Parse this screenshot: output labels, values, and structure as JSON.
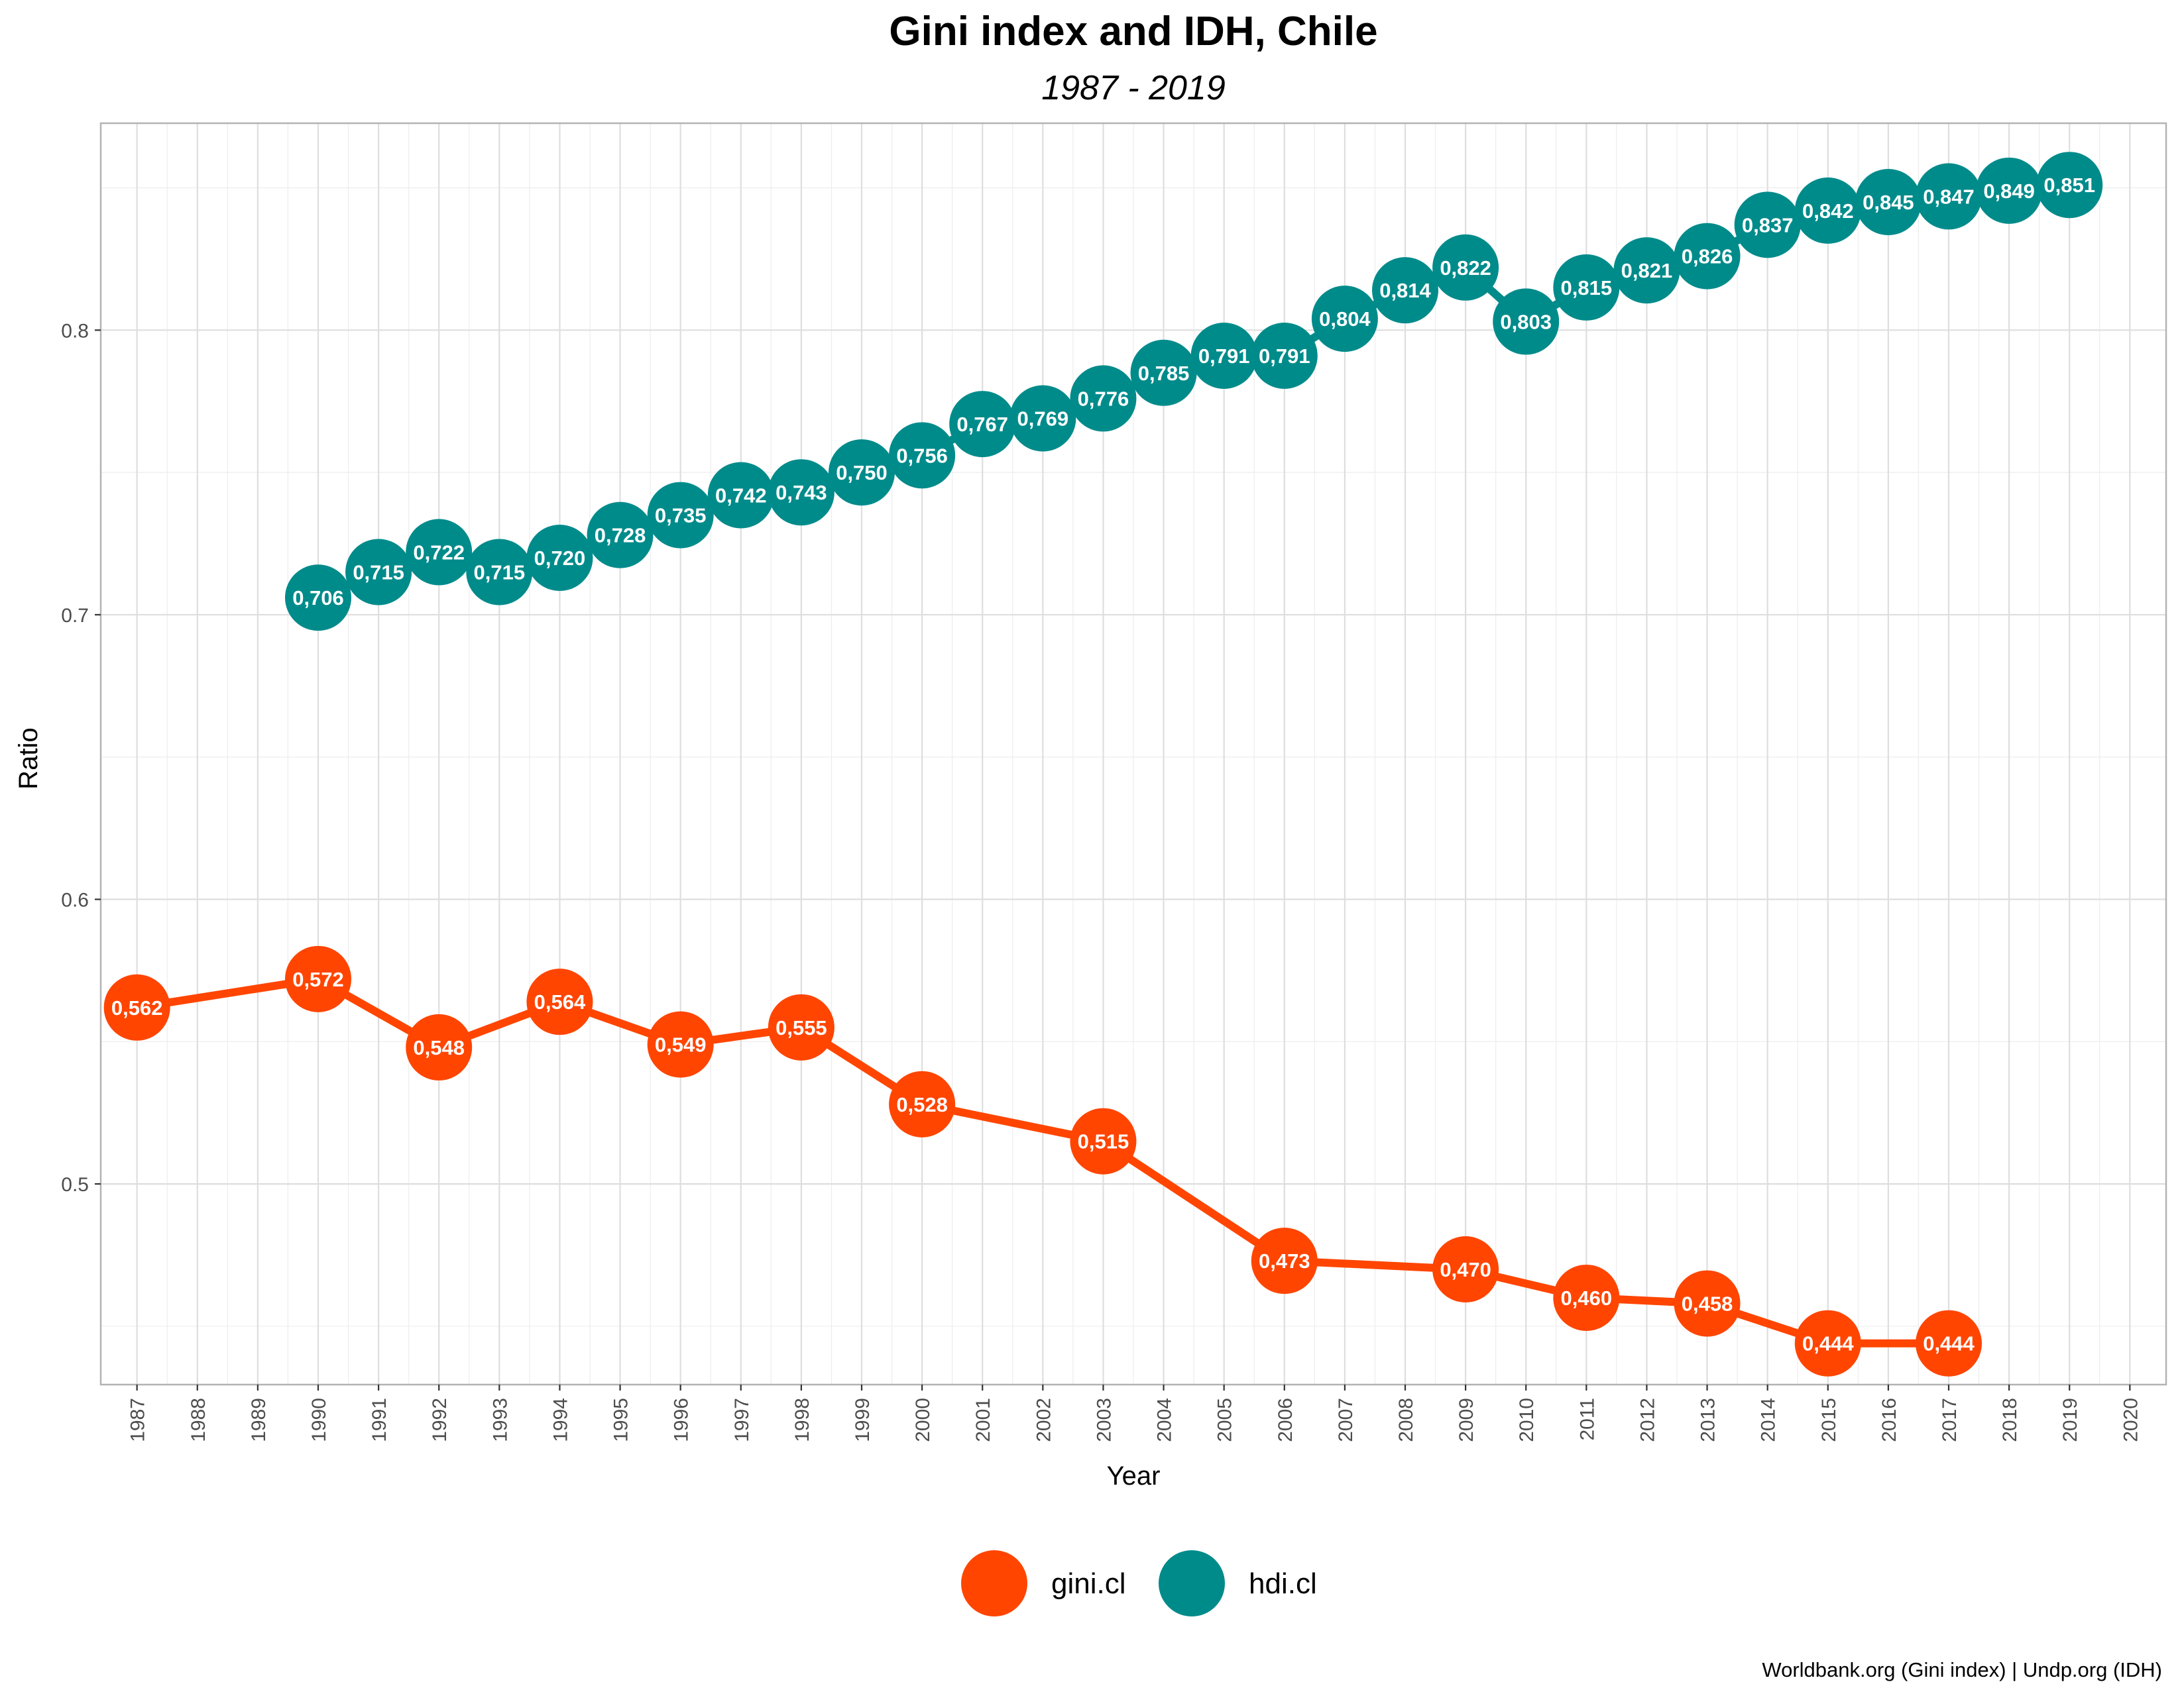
{
  "chart_data": {
    "type": "line",
    "title": "Gini index and IDH, Chile",
    "subtitle": "1987 - 2019",
    "xlabel": "Year",
    "ylabel": "Ratio",
    "caption": "Worldbank.org (Gini index) | Undp.org (IDH)",
    "xlim": [
      1986.4,
      2020.6
    ],
    "ylim": [
      0.4295,
      0.8727
    ],
    "x_ticks": [
      1987,
      1988,
      1989,
      1990,
      1991,
      1992,
      1993,
      1994,
      1995,
      1996,
      1997,
      1998,
      1999,
      2000,
      2001,
      2002,
      2003,
      2004,
      2005,
      2006,
      2007,
      2008,
      2009,
      2010,
      2011,
      2012,
      2013,
      2014,
      2015,
      2016,
      2017,
      2018,
      2019,
      2020
    ],
    "y_ticks": [
      0.5,
      0.6,
      0.7,
      0.8
    ],
    "y_tick_labels": [
      "0.5",
      "0.6",
      "0.7",
      "0.8"
    ],
    "grid": true,
    "legend_position": "bottom",
    "series": [
      {
        "name": "gini.cl",
        "color": "#FF4500",
        "points": [
          {
            "x": 1987,
            "y": 0.562,
            "label": "0,562"
          },
          {
            "x": 1990,
            "y": 0.572,
            "label": "0,572"
          },
          {
            "x": 1992,
            "y": 0.548,
            "label": "0,548"
          },
          {
            "x": 1994,
            "y": 0.564,
            "label": "0,564"
          },
          {
            "x": 1996,
            "y": 0.549,
            "label": "0,549"
          },
          {
            "x": 1998,
            "y": 0.555,
            "label": "0,555"
          },
          {
            "x": 2000,
            "y": 0.528,
            "label": "0,528"
          },
          {
            "x": 2003,
            "y": 0.515,
            "label": "0,515"
          },
          {
            "x": 2006,
            "y": 0.473,
            "label": "0,473"
          },
          {
            "x": 2009,
            "y": 0.47,
            "label": "0,470"
          },
          {
            "x": 2011,
            "y": 0.46,
            "label": "0,460"
          },
          {
            "x": 2013,
            "y": 0.458,
            "label": "0,458"
          },
          {
            "x": 2015,
            "y": 0.444,
            "label": "0,444"
          },
          {
            "x": 2017,
            "y": 0.444,
            "label": "0,444"
          }
        ]
      },
      {
        "name": "hdi.cl",
        "color": "#008B8B",
        "points": [
          {
            "x": 1990,
            "y": 0.706,
            "label": "0,706"
          },
          {
            "x": 1991,
            "y": 0.715,
            "label": "0,715"
          },
          {
            "x": 1992,
            "y": 0.722,
            "label": "0,722"
          },
          {
            "x": 1993,
            "y": 0.715,
            "label": "0,715"
          },
          {
            "x": 1994,
            "y": 0.72,
            "label": "0,720"
          },
          {
            "x": 1995,
            "y": 0.728,
            "label": "0,728"
          },
          {
            "x": 1996,
            "y": 0.735,
            "label": "0,735"
          },
          {
            "x": 1997,
            "y": 0.742,
            "label": "0,742"
          },
          {
            "x": 1998,
            "y": 0.743,
            "label": "0,743"
          },
          {
            "x": 1999,
            "y": 0.75,
            "label": "0,750"
          },
          {
            "x": 2000,
            "y": 0.756,
            "label": "0,756"
          },
          {
            "x": 2001,
            "y": 0.767,
            "label": "0,767"
          },
          {
            "x": 2002,
            "y": 0.769,
            "label": "0,769"
          },
          {
            "x": 2003,
            "y": 0.776,
            "label": "0,776"
          },
          {
            "x": 2004,
            "y": 0.785,
            "label": "0,785"
          },
          {
            "x": 2005,
            "y": 0.791,
            "label": "0,791"
          },
          {
            "x": 2006,
            "y": 0.791,
            "label": "0,791"
          },
          {
            "x": 2007,
            "y": 0.804,
            "label": "0,804"
          },
          {
            "x": 2008,
            "y": 0.814,
            "label": "0,814"
          },
          {
            "x": 2009,
            "y": 0.822,
            "label": "0,822"
          },
          {
            "x": 2010,
            "y": 0.803,
            "label": "0,803"
          },
          {
            "x": 2011,
            "y": 0.815,
            "label": "0,815"
          },
          {
            "x": 2012,
            "y": 0.821,
            "label": "0,821"
          },
          {
            "x": 2013,
            "y": 0.826,
            "label": "0,826"
          },
          {
            "x": 2014,
            "y": 0.837,
            "label": "0,837"
          },
          {
            "x": 2015,
            "y": 0.842,
            "label": "0,842"
          },
          {
            "x": 2016,
            "y": 0.845,
            "label": "0,845"
          },
          {
            "x": 2017,
            "y": 0.847,
            "label": "0,847"
          },
          {
            "x": 2018,
            "y": 0.849,
            "label": "0,849"
          },
          {
            "x": 2019,
            "y": 0.851,
            "label": "0,851"
          }
        ]
      }
    ]
  }
}
